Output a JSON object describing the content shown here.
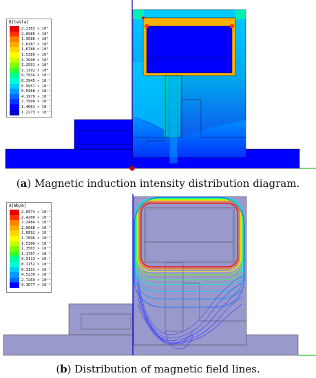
{
  "panel_a": {
    "caption_letter": "a",
    "caption_text": "Magnetic induction intensity distribution diagram.",
    "legend_title": "B[tesla]",
    "legend": [
      {
        "value": "2.2383 × 10⁰",
        "color": "#e60000"
      },
      {
        "value": "2.0985 × 10⁰",
        "color": "#ff3300"
      },
      {
        "value": "1.9586 × 10⁰",
        "color": "#ff8000"
      },
      {
        "value": "1.8187 × 10⁰",
        "color": "#ffaa00"
      },
      {
        "value": "1.6788 × 10⁰",
        "color": "#ffd500"
      },
      {
        "value": "1.5389 × 10⁰",
        "color": "#ffff00"
      },
      {
        "value": "1.3990 × 10⁰",
        "color": "#ccff00"
      },
      {
        "value": "1.2591 × 10⁰",
        "color": "#80ff00"
      },
      {
        "value": "1.1192 × 10⁰",
        "color": "#33ff33"
      },
      {
        "value": "9.7934 × 10⁻¹",
        "color": "#00ff99"
      },
      {
        "value": "8.3945 × 10⁻¹",
        "color": "#00ffd5"
      },
      {
        "value": "6.9957 × 10⁻¹",
        "color": "#00ccff"
      },
      {
        "value": "5.5968 × 10⁻¹",
        "color": "#0099ff"
      },
      {
        "value": "4.1979 × 10⁻¹",
        "color": "#0066ff"
      },
      {
        "value": "2.7990 × 10⁻¹",
        "color": "#0033ff"
      },
      {
        "value": "1.4001 × 10⁻¹",
        "color": "#0000ff"
      },
      {
        "value": "1.2273 × 10⁻⁴",
        "color": "#0000cc"
      }
    ]
  },
  "panel_b": {
    "caption_letter": "b",
    "caption_text": "Distribution of magnetic field lines.",
    "legend_title": "A[Wb/m]",
    "legend": [
      {
        "value": "2.6974 × 10⁻³",
        "color": "#e60000"
      },
      {
        "value": "2.4280 × 10⁻³",
        "color": "#ff3300"
      },
      {
        "value": "2.2484 × 10⁻³",
        "color": "#ff8000"
      },
      {
        "value": "2.0688 × 10⁻³",
        "color": "#ffaa00"
      },
      {
        "value": "1.8892 × 10⁻³",
        "color": "#ffd500"
      },
      {
        "value": "1.7096 × 10⁻³",
        "color": "#ffff00"
      },
      {
        "value": "1.5300 × 10⁻³",
        "color": "#ccff00"
      },
      {
        "value": "1.3503 × 10⁻³",
        "color": "#80ff00"
      },
      {
        "value": "1.1707 × 10⁻³",
        "color": "#33ff33"
      },
      {
        "value": "9.9113 × 10⁻⁴",
        "color": "#00ff99"
      },
      {
        "value": "8.1152 × 10⁻⁴",
        "color": "#00ffd5"
      },
      {
        "value": "6.3191 × 10⁻⁴",
        "color": "#00ccff"
      },
      {
        "value": "4.5230 × 10⁻⁴",
        "color": "#0099ff"
      },
      {
        "value": "2.7269 × 10⁻⁴",
        "color": "#0066ff"
      },
      {
        "value": "9.3077 × 10⁻⁶",
        "color": "#0000ff"
      }
    ]
  },
  "colors": {
    "axis": "#0000cc",
    "ground_line": "#00aa00",
    "origin_point": "#cc0000",
    "core_steel": "#9999cc"
  }
}
